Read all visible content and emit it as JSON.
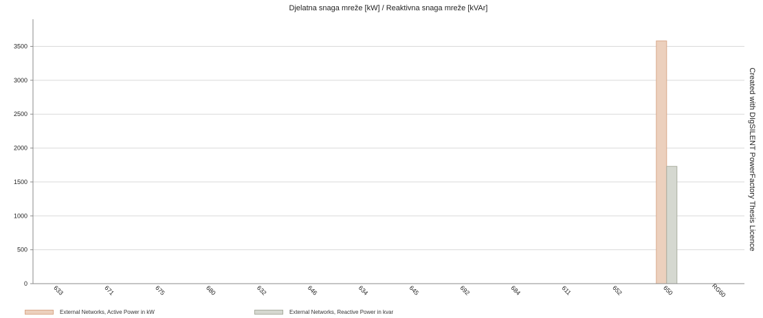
{
  "chart_data": {
    "type": "bar",
    "title": "Djelatna snaga mreže [kW] / Reaktivna snaga mreže [kVAr]",
    "categories": [
      "633",
      "671",
      "675",
      "680",
      "632",
      "646",
      "634",
      "645",
      "692",
      "684",
      "611",
      "652",
      "650",
      "RG60"
    ],
    "series": [
      {
        "name": "External Networks, Active Power in kW",
        "color": "#ecd0bd",
        "stroke": "#d9a88a",
        "values": [
          0,
          0,
          0,
          0,
          0,
          0,
          0,
          0,
          0,
          0,
          0,
          0,
          3580,
          0
        ]
      },
      {
        "name": "External Networks, Reactive Power in kvar",
        "color": "#d5d8d0",
        "stroke": "#a9ad9f",
        "values": [
          0,
          0,
          0,
          0,
          0,
          0,
          0,
          0,
          0,
          0,
          0,
          0,
          1730,
          0
        ]
      }
    ],
    "y_ticks": [
      "0",
      "500",
      "1000",
      "1500",
      "2000",
      "2500",
      "3000",
      "3500"
    ],
    "ylim": [
      0,
      3900
    ],
    "grid": true,
    "legend_position": "bottom-left",
    "side_note": "Created with DIgSILENT PowerFactory Thesis Licence"
  }
}
